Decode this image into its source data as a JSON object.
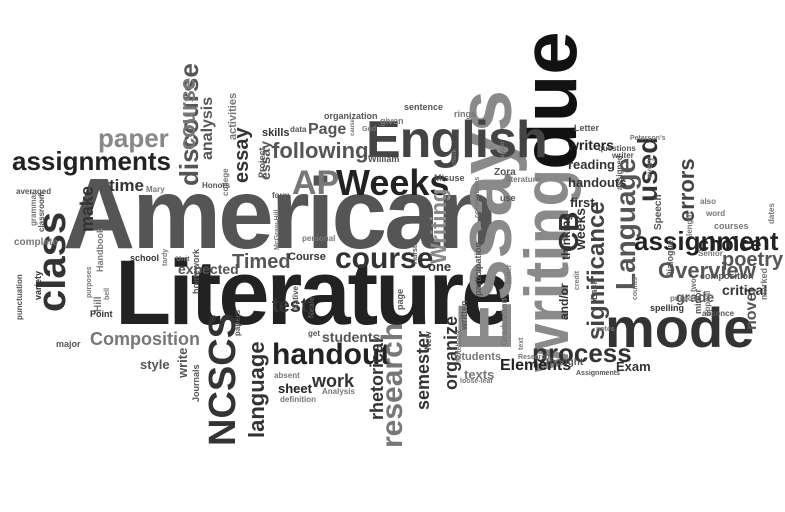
{
  "word_cloud": {
    "words": [
      {
        "text": "American",
        "shade": "#555555"
      },
      {
        "text": "Literature",
        "shade": "#222222"
      },
      {
        "text": "Essays",
        "shade": "#8a8a8a"
      },
      {
        "text": "writing",
        "shade": "#8a8a8a"
      },
      {
        "text": "due",
        "shade": "#111111"
      },
      {
        "text": "English",
        "shade": "#444444"
      },
      {
        "text": "mode",
        "shade": "#333333"
      },
      {
        "text": "Weeks",
        "shade": "#222222"
      },
      {
        "text": "AP",
        "shade": "#777777"
      },
      {
        "text": "class",
        "shade": "#333333"
      },
      {
        "text": "course",
        "shade": "#333333"
      },
      {
        "text": "handout",
        "shade": "#222222"
      },
      {
        "text": "NCSCS",
        "shade": "#333333"
      },
      {
        "text": "research",
        "shade": "#777777"
      },
      {
        "text": "assignments",
        "shade": "#222222"
      },
      {
        "text": "assignment",
        "shade": "#222222"
      },
      {
        "text": "Language",
        "shade": "#555555"
      },
      {
        "text": "process",
        "shade": "#333333"
      },
      {
        "text": "CB",
        "shade": "#333333"
      },
      {
        "text": "used",
        "shade": "#333333"
      },
      {
        "text": "significance",
        "shade": "#444444"
      },
      {
        "text": "Overview",
        "shade": "#555555"
      },
      {
        "text": "poetry",
        "shade": "#555555"
      },
      {
        "text": "errors",
        "shade": "#444444"
      },
      {
        "text": "choice",
        "shade": "#222222"
      },
      {
        "text": "language",
        "shade": "#333333"
      },
      {
        "text": "discourse",
        "shade": "#555555"
      },
      {
        "text": "course",
        "shade": "#777777"
      },
      {
        "text": "paper",
        "shade": "#888888"
      },
      {
        "text": "Timed",
        "shade": "#555555"
      },
      {
        "text": "Composition",
        "shade": "#777777"
      },
      {
        "text": "Elements",
        "shade": "#222222"
      },
      {
        "text": "following",
        "shade": "#555555"
      },
      {
        "text": "essay",
        "shade": "#333333"
      },
      {
        "text": "Writing",
        "shade": "#888888"
      },
      {
        "text": "rhetorical",
        "shade": "#333333"
      },
      {
        "text": "semester",
        "shade": "#333333"
      },
      {
        "text": "organize",
        "shade": "#333333"
      },
      {
        "text": "test",
        "shade": "#333333"
      },
      {
        "text": "work",
        "shade": "#333333"
      },
      {
        "text": "students",
        "shade": "#555555"
      },
      {
        "text": "time",
        "shade": "#333333"
      },
      {
        "text": "make",
        "shade": "#333333"
      },
      {
        "text": "expected",
        "shade": "#555555"
      },
      {
        "text": "Page",
        "shade": "#555555"
      },
      {
        "text": "analysis",
        "shade": "#555555"
      },
      {
        "text": "essay",
        "shade": "#555555"
      },
      {
        "text": "writers",
        "shade": "#222222"
      },
      {
        "text": "reading",
        "shade": "#333333"
      },
      {
        "text": "handouts",
        "shade": "#333333"
      },
      {
        "text": "weeks",
        "shade": "#333333"
      },
      {
        "text": "novel",
        "shade": "#555555"
      },
      {
        "text": "grade",
        "shade": "#555555"
      },
      {
        "text": "critical",
        "shade": "#333333"
      },
      {
        "text": "sheet",
        "shade": "#222222"
      },
      {
        "text": "write",
        "shade": "#555555"
      },
      {
        "text": "style",
        "shade": "#555555"
      },
      {
        "text": "texts",
        "shade": "#777777"
      },
      {
        "text": "Exam",
        "shade": "#333333"
      },
      {
        "text": "first",
        "shade": "#333333"
      },
      {
        "text": "one",
        "shade": "#333333"
      },
      {
        "text": "thinking",
        "shade": "#333333"
      },
      {
        "text": "and/or",
        "shade": "#333333"
      },
      {
        "text": "Students",
        "shade": "#777777"
      },
      {
        "text": "Course",
        "shade": "#333333"
      },
      {
        "text": "skills",
        "shade": "#333333"
      },
      {
        "text": "Project",
        "shade": "#555555"
      },
      {
        "text": "activities",
        "shade": "#777777"
      },
      {
        "text": "organization",
        "shade": "#555555"
      },
      {
        "text": "sentence",
        "shade": "#555555"
      },
      {
        "text": "rings",
        "shade": "#777777"
      },
      {
        "text": "given",
        "shade": "#777777"
      },
      {
        "text": "Letter",
        "shade": "#555555"
      },
      {
        "text": "questions",
        "shade": "#555555"
      },
      {
        "text": "Dialogue",
        "shade": "#555555"
      },
      {
        "text": "composition",
        "shade": "#555555"
      },
      {
        "text": "spelling",
        "shade": "#333333"
      },
      {
        "text": "purpose",
        "shade": "#777777"
      },
      {
        "text": "absence",
        "shade": "#555555"
      },
      {
        "text": "courses",
        "shade": "#777777"
      },
      {
        "text": "marked",
        "shade": "#777777"
      },
      {
        "text": "dates",
        "shade": "#777777"
      },
      {
        "text": "also",
        "shade": "#777777"
      },
      {
        "text": "word",
        "shade": "#777777"
      },
      {
        "text": "appeal",
        "shade": "#777777"
      },
      {
        "text": "minor",
        "shade": "#555555"
      },
      {
        "text": "Speech",
        "shade": "#555555"
      },
      {
        "text": "every",
        "shade": "#777777"
      },
      {
        "text": "length",
        "shade": "#777777"
      },
      {
        "text": "Senior",
        "shade": "#777777"
      },
      {
        "text": "Peterson's",
        "shade": "#777777"
      },
      {
        "text": "writer",
        "shade": "#555555"
      },
      {
        "text": "counts",
        "shade": "#777777"
      },
      {
        "text": "two",
        "shade": "#777777"
      },
      {
        "text": "assigned",
        "shade": "#555555"
      },
      {
        "text": "notes",
        "shade": "#777777"
      },
      {
        "text": "Lack",
        "shade": "#555555"
      },
      {
        "text": "credit",
        "shade": "#777777"
      },
      {
        "text": "Assignments",
        "shade": "#555555"
      },
      {
        "text": "Research",
        "shade": "#777777"
      },
      {
        "text": "text",
        "shade": "#777777"
      },
      {
        "text": "better",
        "shade": "#777777"
      },
      {
        "text": "thought",
        "shade": "#555555"
      },
      {
        "text": "written",
        "shade": "#555555"
      },
      {
        "text": "participation",
        "shade": "#555555"
      },
      {
        "text": "Graduation",
        "shade": "#777777"
      },
      {
        "text": "Zora",
        "shade": "#555555"
      },
      {
        "text": "literature",
        "shade": "#777777"
      },
      {
        "text": "use",
        "shade": "#555555"
      },
      {
        "text": "upper",
        "shade": "#777777"
      },
      {
        "text": "conventions",
        "shade": "#777777"
      },
      {
        "text": "Misuse",
        "shade": "#555555"
      },
      {
        "text": "Hurston",
        "shade": "#555555"
      },
      {
        "text": "check",
        "shade": "#777777"
      },
      {
        "text": "New",
        "shade": "#555555"
      },
      {
        "text": "loose-leaf",
        "shade": "#777777"
      },
      {
        "text": "Notebook",
        "shade": "#777777"
      },
      {
        "text": "page",
        "shade": "#555555"
      },
      {
        "text": "William",
        "shade": "#555555"
      },
      {
        "text": "Neale",
        "shade": "#555555"
      },
      {
        "text": "God",
        "shade": "#777777"
      },
      {
        "text": "cause",
        "shade": "#777777"
      },
      {
        "text": "Analysis",
        "shade": "#777777"
      },
      {
        "text": "get",
        "shade": "#555555"
      },
      {
        "text": "personal",
        "shade": "#777777"
      },
      {
        "text": "Native",
        "shade": "#555555"
      },
      {
        "text": "data",
        "shade": "#555555"
      },
      {
        "text": "form",
        "shade": "#555555"
      },
      {
        "text": "college",
        "shade": "#777777"
      },
      {
        "text": "McGraw-Hill",
        "shade": "#777777"
      },
      {
        "text": "definition",
        "shade": "#777777"
      },
      {
        "text": "absent",
        "shade": "#777777"
      },
      {
        "text": "Honors",
        "shade": "#555555"
      },
      {
        "text": "homework",
        "shade": "#555555"
      },
      {
        "text": "papers",
        "shade": "#555555"
      },
      {
        "text": "Journals",
        "shade": "#555555"
      },
      {
        "text": "Unit",
        "shade": "#777777"
      },
      {
        "text": "school",
        "shade": "#333333"
      },
      {
        "text": "tardy",
        "shade": "#777777"
      },
      {
        "text": "Mary",
        "shade": "#777777"
      },
      {
        "text": "Handbook",
        "shade": "#777777"
      },
      {
        "text": "purposes",
        "shade": "#777777"
      },
      {
        "text": "bell",
        "shade": "#777777"
      },
      {
        "text": "Hill",
        "shade": "#777777"
      },
      {
        "text": "Point",
        "shade": "#333333"
      },
      {
        "text": "averaged",
        "shade": "#555555"
      },
      {
        "text": "grammar",
        "shade": "#777777"
      },
      {
        "text": "classroom",
        "shade": "#555555"
      },
      {
        "text": "complete",
        "shade": "#777777"
      },
      {
        "text": "punctuation",
        "shade": "#555555"
      },
      {
        "text": "variety",
        "shade": "#333333"
      },
      {
        "text": "major",
        "shade": "#555555"
      }
    ]
  }
}
